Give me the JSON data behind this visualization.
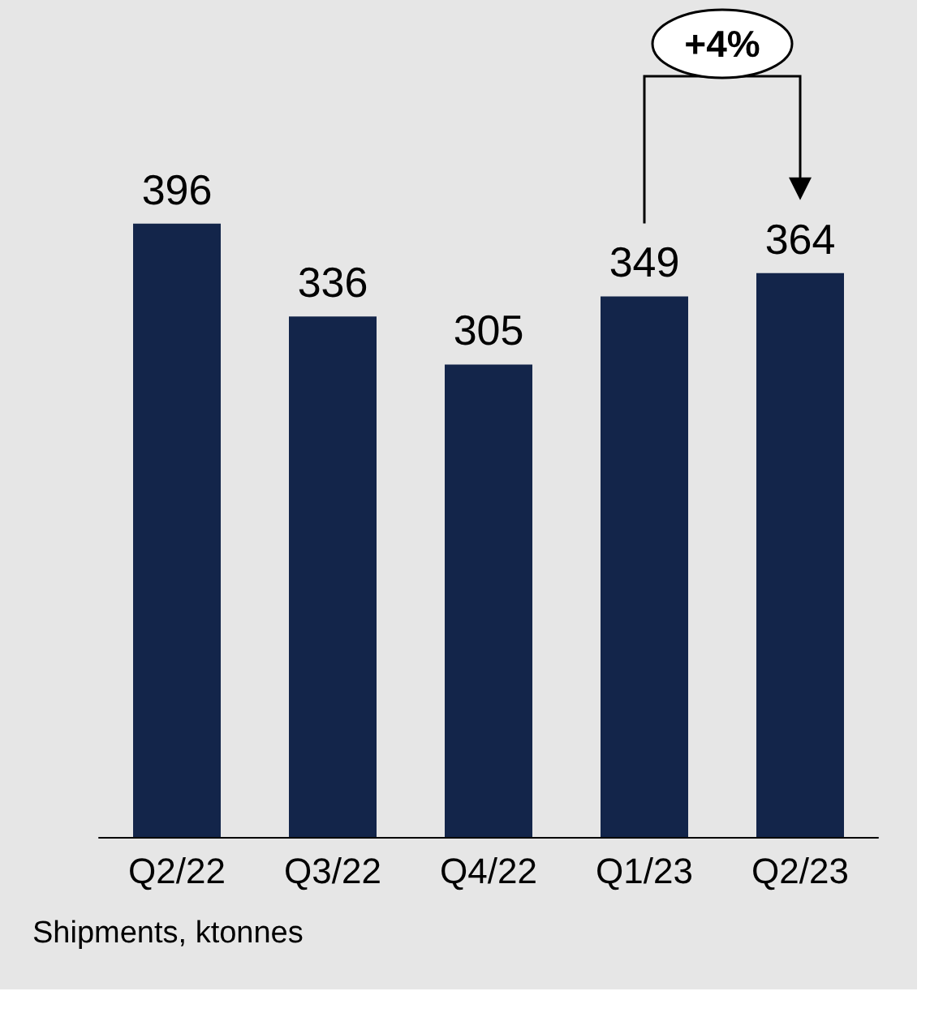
{
  "chart_data": {
    "type": "bar",
    "categories": [
      "Q2/22",
      "Q3/22",
      "Q4/22",
      "Q1/23",
      "Q2/23"
    ],
    "values": [
      396,
      336,
      305,
      349,
      364
    ],
    "color": "#13254a",
    "data_labels": true,
    "annotations": [
      "+4%",
      "Shipments, ktonnes"
    ]
  }
}
